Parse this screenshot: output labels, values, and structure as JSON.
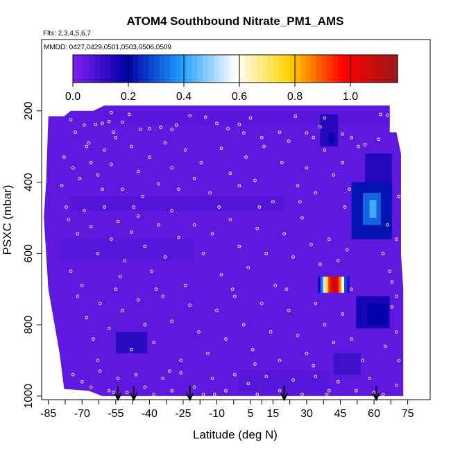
{
  "chart_data": {
    "type": "heatmap",
    "title": "ATOM4 Southbound Nitrate_PM1_AMS",
    "flights_label": "Flts: 2,3,4,5,6,7",
    "dates_label": "MMDD: 0427,0429,0501,0503,0506,0509",
    "xlabel": "Latitude (deg N)",
    "ylabel": "PSXC (mbar)",
    "xlim": [
      -88,
      85
    ],
    "ylim": [
      1010,
      0
    ],
    "x_ticks": [
      -85,
      -70,
      -55,
      -40,
      -25,
      -10,
      5,
      15,
      30,
      45,
      60,
      75
    ],
    "x_tick_labels": [
      "-85",
      "-70",
      "-55",
      "-40",
      "-25",
      "-10",
      "5",
      "15",
      "30",
      "45",
      "60",
      "75"
    ],
    "y_ticks": [
      200,
      400,
      600,
      800,
      1000
    ],
    "y_tick_labels": [
      "200",
      "400",
      "600",
      "800",
      "1000"
    ],
    "colorbar": {
      "range": [
        0,
        1.17
      ],
      "ticks": [
        0.0,
        0.2,
        0.4,
        0.6,
        0.8,
        1.0
      ],
      "tick_labels": [
        "0.0",
        "0.2",
        "0.4",
        "0.6",
        "0.8",
        "1.0"
      ],
      "colors": [
        "#7e20f0",
        "#0000a8",
        "#1d9bff",
        "#ffffff",
        "#ffd400",
        "#ff0000",
        "#9a1818"
      ]
    },
    "background_value": 0.05,
    "outline": [
      [
        -85,
        215
      ],
      [
        -78,
        215
      ],
      [
        -75,
        200
      ],
      [
        -65,
        200
      ],
      [
        -60,
        185
      ],
      [
        67,
        185
      ],
      [
        67,
        260
      ],
      [
        70,
        260
      ],
      [
        72,
        320
      ],
      [
        72,
        600
      ],
      [
        73,
        700
      ],
      [
        73,
        1000
      ],
      [
        -61,
        1000
      ],
      [
        -67,
        985
      ],
      [
        -78,
        980
      ],
      [
        -80,
        880
      ],
      [
        -85,
        700
      ],
      [
        -87,
        500
      ],
      [
        -86,
        400
      ]
    ],
    "features": [
      {
        "lat_min": 50,
        "lat_max": 68,
        "p_min": 400,
        "p_max": 560,
        "value": 0.22
      },
      {
        "lat_min": 55,
        "lat_max": 63,
        "p_min": 430,
        "p_max": 520,
        "value": 0.32
      },
      {
        "lat_min": 58,
        "lat_max": 61,
        "p_min": 450,
        "p_max": 500,
        "value": 0.42
      },
      {
        "lat_min": 56,
        "lat_max": 68,
        "p_min": 320,
        "p_max": 400,
        "value": 0.14
      },
      {
        "lat_min": 36,
        "lat_max": 44,
        "p_min": 210,
        "p_max": 300,
        "value": 0.14
      },
      {
        "lat_min": 40,
        "lat_max": 42,
        "p_min": 260,
        "p_max": 290,
        "value": 0.2
      },
      {
        "lat_min": 52,
        "lat_max": 67,
        "p_min": 720,
        "p_max": 810,
        "value": 0.16
      },
      {
        "lat_min": 57,
        "lat_max": 66,
        "p_min": 740,
        "p_max": 800,
        "value": 0.2
      },
      {
        "lat_min": -55,
        "lat_max": -41,
        "p_min": 820,
        "p_max": 880,
        "value": 0.13
      },
      {
        "lat_min": 42,
        "lat_max": 54,
        "p_min": 880,
        "p_max": 940,
        "value": 0.1
      }
    ],
    "hotspot": {
      "lat_min": 35,
      "lat_max": 49,
      "p_min": 665,
      "p_max": 710,
      "values": [
        0.15,
        0.35,
        0.55,
        0.78,
        0.95,
        1.05,
        1.1,
        1.02,
        0.85,
        0.6,
        0.3,
        0.12
      ]
    },
    "flight_legs": [
      {
        "lat_min": -60,
        "lat_max": 67,
        "p_min": 200,
        "p_max": 240,
        "value": 0.06
      },
      {
        "lat_min": -80,
        "lat_max": -20,
        "p_min": 560,
        "p_max": 620,
        "value": 0.07
      },
      {
        "lat_min": 0,
        "lat_max": 40,
        "p_min": 930,
        "p_max": 990,
        "value": 0.07
      },
      {
        "lat_min": -75,
        "lat_max": 20,
        "p_min": 440,
        "p_max": 480,
        "value": 0.08
      }
    ],
    "arrow_latitudes": [
      -54,
      -47,
      -22,
      20,
      61
    ],
    "points": [
      [
        -75,
        225
      ],
      [
        -73,
        260
      ],
      [
        -69,
        240
      ],
      [
        -64,
        238
      ],
      [
        -61,
        235
      ],
      [
        -58,
        230
      ],
      [
        -57,
        205
      ],
      [
        -52,
        232
      ],
      [
        -49,
        210
      ],
      [
        -44,
        252
      ],
      [
        -40,
        250
      ],
      [
        -35,
        246
      ],
      [
        -30,
        252
      ],
      [
        -22,
        213
      ],
      [
        -15,
        218
      ],
      [
        -10,
        235
      ],
      [
        -5,
        250
      ],
      [
        0,
        238
      ],
      [
        2,
        262
      ],
      [
        10,
        275
      ],
      [
        18,
        260
      ],
      [
        25,
        215
      ],
      [
        30,
        262
      ],
      [
        33,
        275
      ],
      [
        38,
        220
      ],
      [
        46,
        265
      ],
      [
        50,
        275
      ],
      [
        56,
        295
      ],
      [
        63,
        210
      ],
      [
        66,
        212
      ],
      [
        -78,
        330
      ],
      [
        -74,
        360
      ],
      [
        -71,
        390
      ],
      [
        -68,
        300
      ],
      [
        -66,
        345
      ],
      [
        -63,
        380
      ],
      [
        -60,
        310
      ],
      [
        -57,
        350
      ],
      [
        -55,
        275
      ],
      [
        -52,
        420
      ],
      [
        -48,
        300
      ],
      [
        -45,
        370
      ],
      [
        -43,
        440
      ],
      [
        -40,
        330
      ],
      [
        -36,
        405
      ],
      [
        -33,
        290
      ],
      [
        -30,
        360
      ],
      [
        -27,
        420
      ],
      [
        -24,
        310
      ],
      [
        -20,
        390
      ],
      [
        -17,
        345
      ],
      [
        -13,
        430
      ],
      [
        -8,
        305
      ],
      [
        -4,
        375
      ],
      [
        0,
        410
      ],
      [
        3,
        330
      ],
      [
        7,
        395
      ],
      [
        11,
        300
      ],
      [
        15,
        455
      ],
      [
        19,
        345
      ],
      [
        22,
        285
      ],
      [
        26,
        410
      ],
      [
        30,
        360
      ],
      [
        34,
        430
      ],
      [
        38,
        310
      ],
      [
        42,
        380
      ],
      [
        46,
        345
      ],
      [
        49,
        420
      ],
      [
        53,
        300
      ],
      [
        62,
        280
      ],
      [
        -76,
        505
      ],
      [
        -72,
        545
      ],
      [
        -69,
        480
      ],
      [
        -66,
        525
      ],
      [
        -63,
        600
      ],
      [
        -60,
        470
      ],
      [
        -57,
        560
      ],
      [
        -54,
        510
      ],
      [
        -51,
        620
      ],
      [
        -48,
        540
      ],
      [
        -45,
        495
      ],
      [
        -42,
        580
      ],
      [
        -39,
        650
      ],
      [
        -36,
        520
      ],
      [
        -33,
        610
      ],
      [
        -30,
        480
      ],
      [
        -27,
        555
      ],
      [
        -24,
        690
      ],
      [
        -20,
        520
      ],
      [
        -16,
        600
      ],
      [
        -12,
        545
      ],
      [
        -8,
        660
      ],
      [
        -4,
        505
      ],
      [
        0,
        580
      ],
      [
        4,
        640
      ],
      [
        8,
        530
      ],
      [
        12,
        600
      ],
      [
        16,
        690
      ],
      [
        20,
        545
      ],
      [
        24,
        610
      ],
      [
        28,
        500
      ],
      [
        32,
        575
      ],
      [
        36,
        630
      ],
      [
        40,
        560
      ],
      [
        44,
        620
      ],
      [
        48,
        590
      ],
      [
        64,
        600
      ],
      [
        67,
        650
      ],
      [
        66,
        520
      ],
      [
        70,
        560
      ],
      [
        -72,
        720
      ],
      [
        -68,
        780
      ],
      [
        -65,
        840
      ],
      [
        -62,
        740
      ],
      [
        -58,
        810
      ],
      [
        -55,
        700
      ],
      [
        -52,
        760
      ],
      [
        -48,
        870
      ],
      [
        -45,
        730
      ],
      [
        -42,
        800
      ],
      [
        -38,
        850
      ],
      [
        -34,
        720
      ],
      [
        -30,
        790
      ],
      [
        -26,
        900
      ],
      [
        -22,
        745
      ],
      [
        -18,
        820
      ],
      [
        -14,
        880
      ],
      [
        -10,
        760
      ],
      [
        -6,
        840
      ],
      [
        -2,
        720
      ],
      [
        2,
        800
      ],
      [
        6,
        870
      ],
      [
        10,
        740
      ],
      [
        14,
        820
      ],
      [
        18,
        900
      ],
      [
        22,
        760
      ],
      [
        26,
        830
      ],
      [
        30,
        880
      ],
      [
        34,
        740
      ],
      [
        38,
        800
      ],
      [
        42,
        850
      ],
      [
        46,
        770
      ],
      [
        50,
        840
      ],
      [
        55,
        900
      ],
      [
        68,
        750
      ],
      [
        70,
        820
      ],
      [
        71,
        900
      ],
      [
        68,
        680
      ],
      [
        70,
        720
      ],
      [
        65,
        860
      ],
      [
        -74,
        940
      ],
      [
        -70,
        960
      ],
      [
        -66,
        975
      ],
      [
        -62,
        930
      ],
      [
        -58,
        985
      ],
      [
        -54,
        950
      ],
      [
        -50,
        990
      ],
      [
        -46,
        940
      ],
      [
        -42,
        975
      ],
      [
        -38,
        995
      ],
      [
        -34,
        950
      ],
      [
        -30,
        985
      ],
      [
        -26,
        935
      ],
      [
        -20,
        975
      ],
      [
        -16,
        995
      ],
      [
        -12,
        950
      ],
      [
        -6,
        985
      ],
      [
        -2,
        940
      ],
      [
        4,
        965
      ],
      [
        8,
        995
      ],
      [
        12,
        945
      ],
      [
        18,
        985
      ],
      [
        24,
        955
      ],
      [
        28,
        995
      ],
      [
        34,
        945
      ],
      [
        40,
        985
      ],
      [
        44,
        960
      ],
      [
        52,
        985
      ],
      [
        58,
        950
      ],
      [
        64,
        995
      ],
      [
        -67,
        290
      ],
      [
        -56,
        260
      ],
      [
        -28,
        240
      ],
      [
        5,
        220
      ],
      [
        36,
        245
      ],
      [
        -79,
        410
      ],
      [
        -77,
        470
      ],
      [
        -61,
        420
      ],
      [
        -47,
        470
      ],
      [
        -9,
        470
      ],
      [
        9,
        470
      ],
      [
        27,
        455
      ],
      [
        47,
        470
      ],
      [
        71,
        440
      ],
      [
        -75,
        650
      ],
      [
        -70,
        690
      ],
      [
        -53,
        665
      ],
      [
        -37,
        700
      ],
      [
        -3,
        700
      ],
      [
        21,
        700
      ],
      [
        50,
        700
      ],
      [
        -63,
        900
      ],
      [
        -31,
        930
      ],
      [
        7,
        910
      ],
      [
        33,
        915
      ],
      [
        -56,
        990
      ],
      [
        -11,
        995
      ],
      [
        39,
        995
      ],
      [
        60,
        990
      ],
      [
        70,
        970
      ]
    ]
  }
}
